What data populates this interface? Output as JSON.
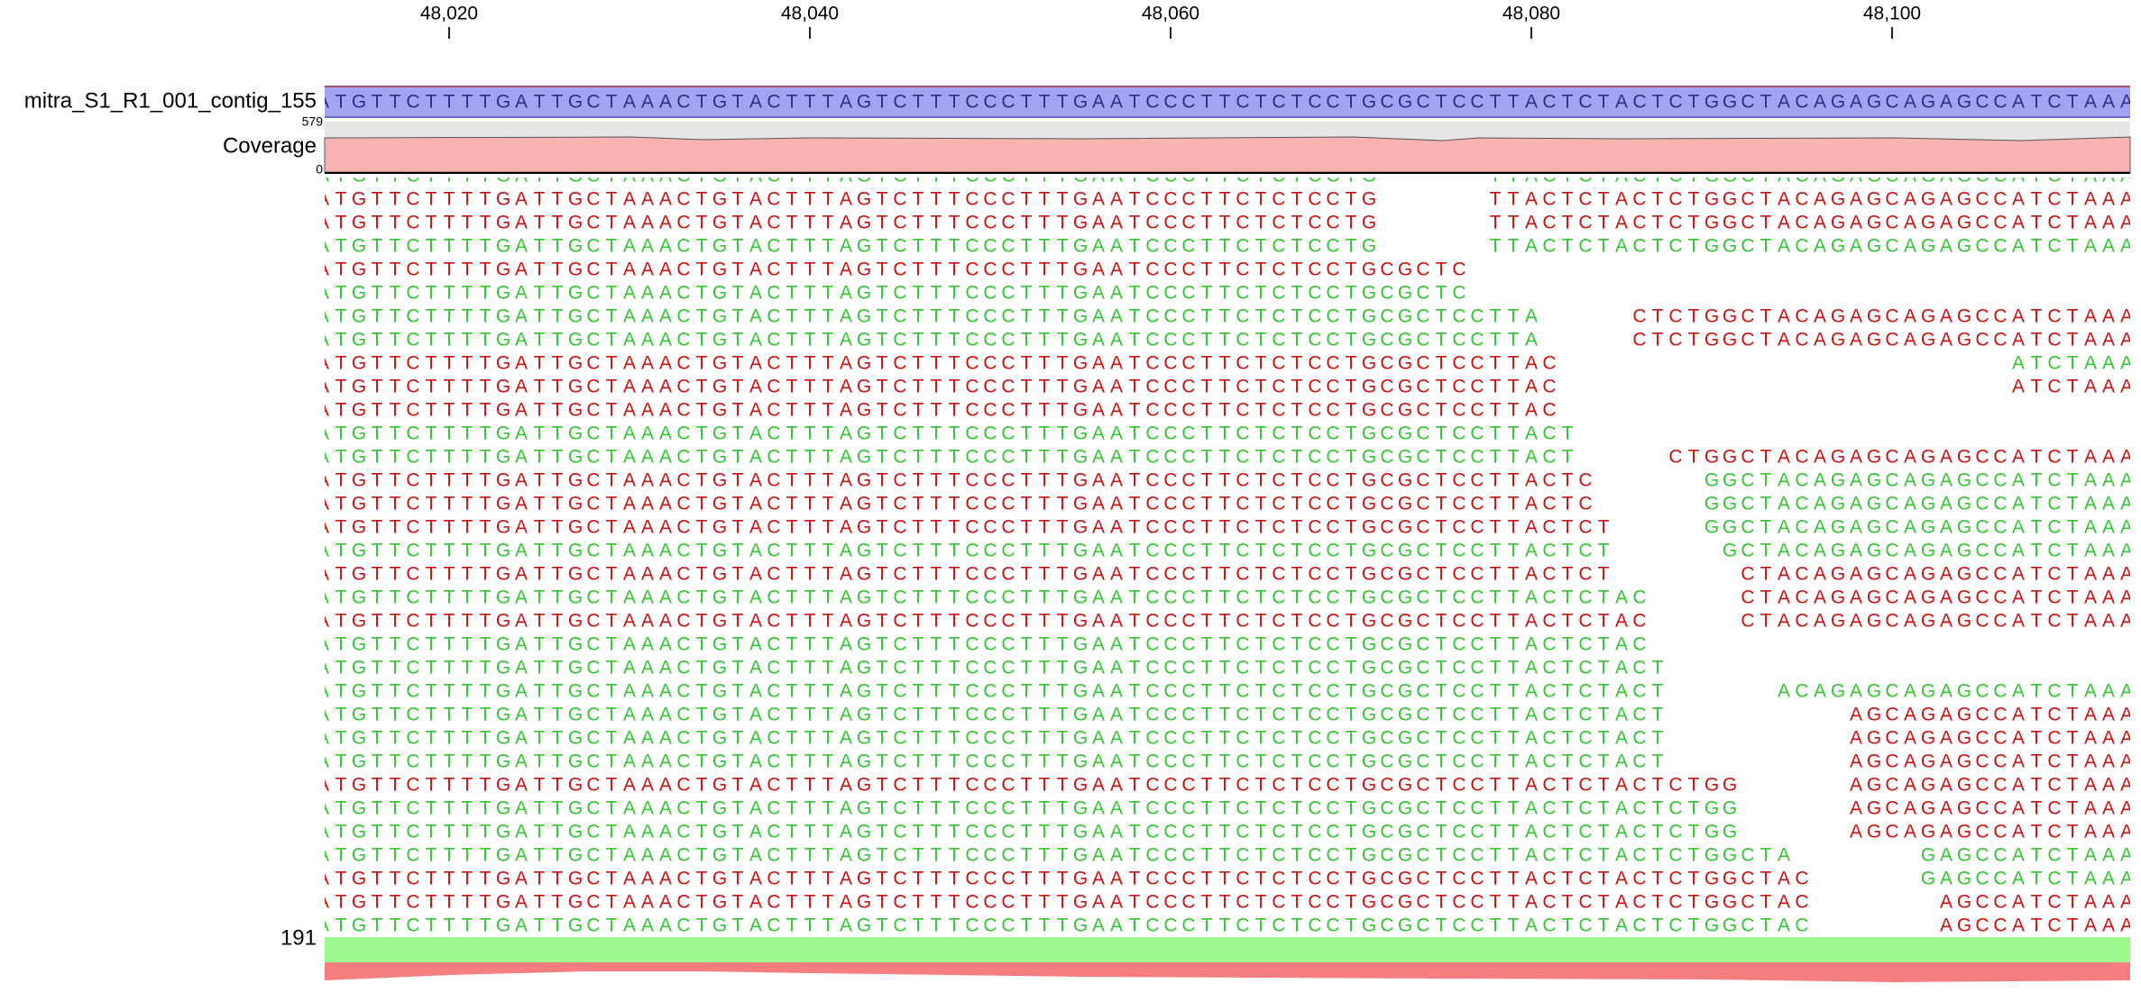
{
  "ruler": {
    "xlim": [
      48013.1,
      48113.2
    ],
    "ticks": [
      {
        "value": 48020,
        "label": "48,020"
      },
      {
        "value": 48040,
        "label": "48,040"
      },
      {
        "value": 48060,
        "label": "48,060"
      },
      {
        "value": 48080,
        "label": "48,080"
      },
      {
        "value": 48100,
        "label": "48,100"
      }
    ]
  },
  "reference": {
    "name": "mitra_S1_R1_001_contig_155",
    "start": 48013,
    "sequence": "ATGTTCTTTTGATTGCTAAACTGTACTTTAGTCTTTCCCTTTGAATCCCTTCTCTCCTGCGCTCCTTACTCTACTCTGGCTACAGAGCAGAGCCATCTAAA"
  },
  "coverage": {
    "label": "Coverage",
    "range_max": 579,
    "range_min": 0
  },
  "reads": {
    "count": 191,
    "rows": [
      [
        {
          "start": 48013,
          "seq": "ATGTTCTTTTGATTGCTAAACTGTACTTTAGTCTTTCCCTTTGAATCCCTTCTCTCCTG",
          "color": "#33c633"
        },
        {
          "start": 48078,
          "seq": "TTACTCTACTCTGGCTACAGAGCAGAGCCATCTAAA",
          "color": "#33c633"
        }
      ],
      [
        {
          "start": 48013,
          "seq": "ATGTTCTTTTGATTGCTAAACTGTACTTTAGTCTTTCCCTTTGAATCCCTTCTCTCCTG",
          "color": "#cc1111"
        },
        {
          "start": 48078,
          "seq": "TTACTCTACTCTGGCTACAGAGCAGAGCCATCTAAA",
          "color": "#cc1111"
        }
      ],
      [
        {
          "start": 48013,
          "seq": "ATGTTCTTTTGATTGCTAAACTGTACTTTAGTCTTTCCCTTTGAATCCCTTCTCTCCTG",
          "color": "#cc1111"
        },
        {
          "start": 48078,
          "seq": "TTACTCTACTCTGGCTACAGAGCAGAGCCATCTAAA",
          "color": "#cc1111"
        }
      ],
      [
        {
          "start": 48013,
          "seq": "ATGTTCTTTTGATTGCTAAACTGTACTTTAGTCTTTCCCTTTGAATCCCTTCTCTCCTG",
          "color": "#33c633"
        },
        {
          "start": 48078,
          "seq": "TTACTCTACTCTGGCTACAGAGCAGAGCCATCTAAA",
          "color": "#33c633"
        }
      ],
      [
        {
          "start": 48013,
          "seq": "ATGTTCTTTTGATTGCTAAACTGTACTTTAGTCTTTCCCTTTGAATCCCTTCTCTCCTGCGCTC",
          "color": "#cc1111"
        }
      ],
      [
        {
          "start": 48013,
          "seq": "ATGTTCTTTTGATTGCTAAACTGTACTTTAGTCTTTCCCTTTGAATCCCTTCTCTCCTGCGCTC",
          "color": "#33c633"
        }
      ],
      [
        {
          "start": 48013,
          "seq": "ATGTTCTTTTGATTGCTAAACTGTACTTTAGTCTTTCCCTTTGAATCCCTTCTCTCCTGCGCTCCTTA",
          "color": "#33c633"
        },
        {
          "start": 48086,
          "seq": "CTCTGGCTACAGAGCAGAGCCATCTAAA",
          "color": "#cc1111"
        }
      ],
      [
        {
          "start": 48013,
          "seq": "ATGTTCTTTTGATTGCTAAACTGTACTTTAGTCTTTCCCTTTGAATCCCTTCTCTCCTGCGCTCCTTA",
          "color": "#33c633"
        },
        {
          "start": 48086,
          "seq": "CTCTGGCTACAGAGCAGAGCCATCTAAA",
          "color": "#cc1111"
        }
      ],
      [
        {
          "start": 48013,
          "seq": "ATGTTCTTTTGATTGCTAAACTGTACTTTAGTCTTTCCCTTTGAATCCCTTCTCTCCTGCGCTCCTTAC",
          "color": "#cc1111"
        },
        {
          "start": 48107,
          "seq": "ATCTAAA",
          "color": "#33c633"
        }
      ],
      [
        {
          "start": 48013,
          "seq": "ATGTTCTTTTGATTGCTAAACTGTACTTTAGTCTTTCCCTTTGAATCCCTTCTCTCCTGCGCTCCTTAC",
          "color": "#cc1111"
        },
        {
          "start": 48107,
          "seq": "ATCTAAA",
          "color": "#cc1111"
        }
      ],
      [
        {
          "start": 48013,
          "seq": "ATGTTCTTTTGATTGCTAAACTGTACTTTAGTCTTTCCCTTTGAATCCCTTCTCTCCTGCGCTCCTTAC",
          "color": "#cc1111"
        }
      ],
      [
        {
          "start": 48013,
          "seq": "ATGTTCTTTTGATTGCTAAACTGTACTTTAGTCTTTCCCTTTGAATCCCTTCTCTCCTGCGCTCCTTACT",
          "color": "#33c633"
        }
      ],
      [
        {
          "start": 48013,
          "seq": "ATGTTCTTTTGATTGCTAAACTGTACTTTAGTCTTTCCCTTTGAATCCCTTCTCTCCTGCGCTCCTTACT",
          "color": "#33c633"
        },
        {
          "start": 48088,
          "seq": "CTGGCTACAGAGCAGAGCCATCTAAA",
          "color": "#cc1111"
        }
      ],
      [
        {
          "start": 48013,
          "seq": "ATGTTCTTTTGATTGCTAAACTGTACTTTAGTCTTTCCCTTTGAATCCCTTCTCTCCTGCGCTCCTTACTC",
          "color": "#cc1111"
        },
        {
          "start": 48090,
          "seq": "GGCTACAGAGCAGAGCCATCTAAA",
          "color": "#33c633"
        }
      ],
      [
        {
          "start": 48013,
          "seq": "ATGTTCTTTTGATTGCTAAACTGTACTTTAGTCTTTCCCTTTGAATCCCTTCTCTCCTGCGCTCCTTACTC",
          "color": "#cc1111"
        },
        {
          "start": 48090,
          "seq": "GGCTACAGAGCAGAGCCATCTAAA",
          "color": "#33c633"
        }
      ],
      [
        {
          "start": 48013,
          "seq": "ATGTTCTTTTGATTGCTAAACTGTACTTTAGTCTTTCCCTTTGAATCCCTTCTCTCCTGCGCTCCTTACTCT",
          "color": "#cc1111"
        },
        {
          "start": 48090,
          "seq": "GGCTACAGAGCAGAGCCATCTAAA",
          "color": "#33c633"
        }
      ],
      [
        {
          "start": 48013,
          "seq": "ATGTTCTTTTGATTGCTAAACTGTACTTTAGTCTTTCCCTTTGAATCCCTTCTCTCCTGCGCTCCTTACTCT",
          "color": "#33c633"
        },
        {
          "start": 48091,
          "seq": "GCTACAGAGCAGAGCCATCTAAA",
          "color": "#33c633"
        }
      ],
      [
        {
          "start": 48013,
          "seq": "ATGTTCTTTTGATTGCTAAACTGTACTTTAGTCTTTCCCTTTGAATCCCTTCTCTCCTGCGCTCCTTACTCT",
          "color": "#cc1111"
        },
        {
          "start": 48092,
          "seq": "CTACAGAGCAGAGCCATCTAAA",
          "color": "#cc1111"
        }
      ],
      [
        {
          "start": 48013,
          "seq": "ATGTTCTTTTGATTGCTAAACTGTACTTTAGTCTTTCCCTTTGAATCCCTTCTCTCCTGCGCTCCTTACTCTAC",
          "color": "#33c633"
        },
        {
          "start": 48092,
          "seq": "CTACAGAGCAGAGCCATCTAAA",
          "color": "#cc1111"
        }
      ],
      [
        {
          "start": 48013,
          "seq": "ATGTTCTTTTGATTGCTAAACTGTACTTTAGTCTTTCCCTTTGAATCCCTTCTCTCCTGCGCTCCTTACTCTAC",
          "color": "#cc1111"
        },
        {
          "start": 48092,
          "seq": "CTACAGAGCAGAGCCATCTAAA",
          "color": "#cc1111"
        }
      ],
      [
        {
          "start": 48013,
          "seq": "ATGTTCTTTTGATTGCTAAACTGTACTTTAGTCTTTCCCTTTGAATCCCTTCTCTCCTGCGCTCCTTACTCTAC",
          "color": "#33c633"
        }
      ],
      [
        {
          "start": 48013,
          "seq": "ATGTTCTTTTGATTGCTAAACTGTACTTTAGTCTTTCCCTTTGAATCCCTTCTCTCCTGCGCTCCTTACTCTACT",
          "color": "#33c633"
        }
      ],
      [
        {
          "start": 48013,
          "seq": "ATGTTCTTTTGATTGCTAAACTGTACTTTAGTCTTTCCCTTTGAATCCCTTCTCTCCTGCGCTCCTTACTCTACT",
          "color": "#33c633"
        },
        {
          "start": 48094,
          "seq": "ACAGAGCAGAGCCATCTAAA",
          "color": "#33c633"
        }
      ],
      [
        {
          "start": 48013,
          "seq": "ATGTTCTTTTGATTGCTAAACTGTACTTTAGTCTTTCCCTTTGAATCCCTTCTCTCCTGCGCTCCTTACTCTACT",
          "color": "#33c633"
        },
        {
          "start": 48098,
          "seq": "AGCAGAGCCATCTAAA",
          "color": "#cc1111"
        }
      ],
      [
        {
          "start": 48013,
          "seq": "ATGTTCTTTTGATTGCTAAACTGTACTTTAGTCTTTCCCTTTGAATCCCTTCTCTCCTGCGCTCCTTACTCTACT",
          "color": "#33c633"
        },
        {
          "start": 48098,
          "seq": "AGCAGAGCCATCTAAA",
          "color": "#cc1111"
        }
      ],
      [
        {
          "start": 48013,
          "seq": "ATGTTCTTTTGATTGCTAAACTGTACTTTAGTCTTTCCCTTTGAATCCCTTCTCTCCTGCGCTCCTTACTCTACT",
          "color": "#33c633"
        },
        {
          "start": 48098,
          "seq": "AGCAGAGCCATCTAAA",
          "color": "#cc1111"
        }
      ],
      [
        {
          "start": 48013,
          "seq": "ATGTTCTTTTGATTGCTAAACTGTACTTTAGTCTTTCCCTTTGAATCCCTTCTCTCCTGCGCTCCTTACTCTACTCTGG",
          "color": "#cc1111"
        },
        {
          "start": 48098,
          "seq": "AGCAGAGCCATCTAAA",
          "color": "#cc1111"
        }
      ],
      [
        {
          "start": 48013,
          "seq": "ATGTTCTTTTGATTGCTAAACTGTACTTTAGTCTTTCCCTTTGAATCCCTTCTCTCCTGCGCTCCTTACTCTACTCTGG",
          "color": "#33c633"
        },
        {
          "start": 48098,
          "seq": "AGCAGAGCCATCTAAA",
          "color": "#cc1111"
        }
      ],
      [
        {
          "start": 48013,
          "seq": "ATGTTCTTTTGATTGCTAAACTGTACTTTAGTCTTTCCCTTTGAATCCCTTCTCTCCTGCGCTCCTTACTCTACTCTGG",
          "color": "#33c633"
        },
        {
          "start": 48098,
          "seq": "AGCAGAGCCATCTAAA",
          "color": "#cc1111"
        }
      ],
      [
        {
          "start": 48013,
          "seq": "ATGTTCTTTTGATTGCTAAACTGTACTTTAGTCTTTCCCTTTGAATCCCTTCTCTCCTGCGCTCCTTACTCTACTCTGGCTA",
          "color": "#33c633"
        },
        {
          "start": 48102,
          "seq": "GAGCCATCTAAA",
          "color": "#33c633"
        }
      ],
      [
        {
          "start": 48013,
          "seq": "ATGTTCTTTTGATTGCTAAACTGTACTTTAGTCTTTCCCTTTGAATCCCTTCTCTCCTGCGCTCCTTACTCTACTCTGGCTAC",
          "color": "#cc1111"
        },
        {
          "start": 48102,
          "seq": "GAGCCATCTAAA",
          "color": "#33c633"
        }
      ],
      [
        {
          "start": 48013,
          "seq": "ATGTTCTTTTGATTGCTAAACTGTACTTTAGTCTTTCCCTTTGAATCCCTTCTCTCCTGCGCTCCTTACTCTACTCTGGCTAC",
          "color": "#cc1111"
        },
        {
          "start": 48103,
          "seq": "AGCCATCTAAA",
          "color": "#cc1111"
        }
      ],
      [
        {
          "start": 48013,
          "seq": "ATGTTCTTTTGATTGCTAAACTGTACTTTAGTCTTTCCCTTTGAATCCCTTCTCTCCTGCGCTCCTTACTCTACTCTGGCTAC",
          "color": "#33c633"
        },
        {
          "start": 48103,
          "seq": "AGCCATCTAAA",
          "color": "#cc1111"
        }
      ]
    ]
  }
}
